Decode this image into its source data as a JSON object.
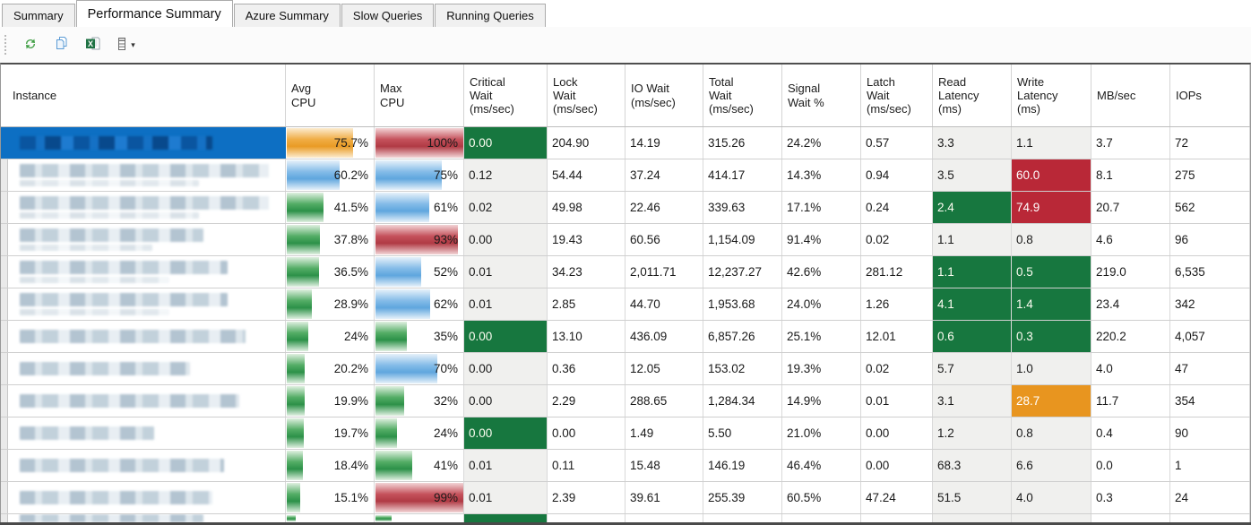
{
  "tabs": [
    {
      "label": "Summary",
      "active": false
    },
    {
      "label": "Performance Summary",
      "active": true
    },
    {
      "label": "Azure Summary",
      "active": false
    },
    {
      "label": "Slow Queries",
      "active": false
    },
    {
      "label": "Running Queries",
      "active": false
    }
  ],
  "toolbar": {
    "caret": "▾",
    "buttons": [
      {
        "name": "refresh"
      },
      {
        "name": "copy"
      },
      {
        "name": "export-excel"
      },
      {
        "name": "column-chooser"
      }
    ]
  },
  "colors": {
    "selection_blue": "#0d6fc3",
    "bar_green": "#2c9148",
    "bar_blue": "#5fa6de",
    "bar_red": "#b03a44",
    "bar_orange": "#e99b25",
    "cell_green": "#17773f",
    "cell_red": "#b92837",
    "cell_orange": "#e8951f",
    "tinted_column_bg": "#f0f0ee"
  },
  "table": {
    "columns": [
      {
        "key": "instance",
        "label": "Instance"
      },
      {
        "key": "avg",
        "label": "Avg\nCPU"
      },
      {
        "key": "max",
        "label": "Max\nCPU"
      },
      {
        "key": "critical",
        "label": "Critical\nWait\n(ms/sec)"
      },
      {
        "key": "lock",
        "label": "Lock\nWait\n(ms/sec)"
      },
      {
        "key": "io",
        "label": "IO Wait\n(ms/sec)"
      },
      {
        "key": "total",
        "label": "Total\nWait\n(ms/sec)"
      },
      {
        "key": "signal",
        "label": "Signal\nWait %"
      },
      {
        "key": "latch",
        "label": "Latch\nWait\n(ms/sec)"
      },
      {
        "key": "read",
        "label": "Read\nLatency\n(ms)"
      },
      {
        "key": "write",
        "label": "Write\nLatency\n(ms)"
      },
      {
        "key": "mb",
        "label": "MB/sec"
      },
      {
        "key": "iops",
        "label": "IOPs"
      }
    ],
    "rows": [
      {
        "selected": true,
        "blur_w": 215,
        "blur_sub": false,
        "avg": {
          "pct": 75.7,
          "label": "75.7%",
          "color": "orange"
        },
        "max": {
          "pct": 100,
          "label": "100%",
          "color": "red"
        },
        "cells": {
          "critical": {
            "t": "0.00",
            "bg": "green"
          },
          "lock": {
            "t": "204.90"
          },
          "io": {
            "t": "14.19"
          },
          "total": {
            "t": "315.26"
          },
          "signal": {
            "t": "24.2%"
          },
          "latch": {
            "t": "0.57"
          },
          "read": {
            "t": "3.3"
          },
          "write": {
            "t": "1.1"
          },
          "mb": {
            "t": "3.7"
          },
          "iops": {
            "t": "72"
          }
        }
      },
      {
        "blur_w": 278,
        "blur_sub": true,
        "avg": {
          "pct": 60.2,
          "label": "60.2%",
          "color": "blue"
        },
        "max": {
          "pct": 75,
          "label": "75%",
          "color": "blue"
        },
        "cells": {
          "critical": {
            "t": "0.12"
          },
          "lock": {
            "t": "54.44"
          },
          "io": {
            "t": "37.24"
          },
          "total": {
            "t": "414.17"
          },
          "signal": {
            "t": "14.3%"
          },
          "latch": {
            "t": "0.94"
          },
          "read": {
            "t": "3.5"
          },
          "write": {
            "t": "60.0",
            "bg": "red"
          },
          "mb": {
            "t": "8.1"
          },
          "iops": {
            "t": "275"
          }
        }
      },
      {
        "blur_w": 278,
        "blur_sub": true,
        "avg": {
          "pct": 41.5,
          "label": "41.5%",
          "color": "green"
        },
        "max": {
          "pct": 61,
          "label": "61%",
          "color": "blue"
        },
        "cells": {
          "critical": {
            "t": "0.02"
          },
          "lock": {
            "t": "49.98"
          },
          "io": {
            "t": "22.46"
          },
          "total": {
            "t": "339.63"
          },
          "signal": {
            "t": "17.1%"
          },
          "latch": {
            "t": "0.24"
          },
          "read": {
            "t": "2.4",
            "bg": "green"
          },
          "write": {
            "t": "74.9",
            "bg": "red"
          },
          "mb": {
            "t": "20.7"
          },
          "iops": {
            "t": "562"
          }
        }
      },
      {
        "blur_w": 205,
        "blur_sub": true,
        "avg": {
          "pct": 37.8,
          "label": "37.8%",
          "color": "green"
        },
        "max": {
          "pct": 93,
          "label": "93%",
          "color": "red"
        },
        "cells": {
          "critical": {
            "t": "0.00"
          },
          "lock": {
            "t": "19.43"
          },
          "io": {
            "t": "60.56"
          },
          "total": {
            "t": "1,154.09"
          },
          "signal": {
            "t": "91.4%"
          },
          "latch": {
            "t": "0.02"
          },
          "read": {
            "t": "1.1"
          },
          "write": {
            "t": "0.8"
          },
          "mb": {
            "t": "4.6"
          },
          "iops": {
            "t": "96"
          }
        }
      },
      {
        "blur_w": 232,
        "blur_sub": true,
        "avg": {
          "pct": 36.5,
          "label": "36.5%",
          "color": "green"
        },
        "max": {
          "pct": 52,
          "label": "52%",
          "color": "blue"
        },
        "cells": {
          "critical": {
            "t": "0.01"
          },
          "lock": {
            "t": "34.23"
          },
          "io": {
            "t": "2,011.71"
          },
          "total": {
            "t": "12,237.27"
          },
          "signal": {
            "t": "42.6%"
          },
          "latch": {
            "t": "281.12"
          },
          "read": {
            "t": "1.1",
            "bg": "green"
          },
          "write": {
            "t": "0.5",
            "bg": "green"
          },
          "mb": {
            "t": "219.0"
          },
          "iops": {
            "t": "6,535"
          }
        }
      },
      {
        "blur_w": 232,
        "blur_sub": true,
        "avg": {
          "pct": 28.9,
          "label": "28.9%",
          "color": "green"
        },
        "max": {
          "pct": 62,
          "label": "62%",
          "color": "blue"
        },
        "cells": {
          "critical": {
            "t": "0.01"
          },
          "lock": {
            "t": "2.85"
          },
          "io": {
            "t": "44.70"
          },
          "total": {
            "t": "1,953.68"
          },
          "signal": {
            "t": "24.0%"
          },
          "latch": {
            "t": "1.26"
          },
          "read": {
            "t": "4.1",
            "bg": "green"
          },
          "write": {
            "t": "1.4",
            "bg": "green"
          },
          "mb": {
            "t": "23.4"
          },
          "iops": {
            "t": "342"
          }
        }
      },
      {
        "blur_w": 252,
        "blur_sub": false,
        "avg": {
          "pct": 24,
          "label": "24%",
          "color": "green"
        },
        "max": {
          "pct": 35,
          "label": "35%",
          "color": "green"
        },
        "cells": {
          "critical": {
            "t": "0.00",
            "bg": "green"
          },
          "lock": {
            "t": "13.10"
          },
          "io": {
            "t": "436.09"
          },
          "total": {
            "t": "6,857.26"
          },
          "signal": {
            "t": "25.1%"
          },
          "latch": {
            "t": "12.01"
          },
          "read": {
            "t": "0.6",
            "bg": "green"
          },
          "write": {
            "t": "0.3",
            "bg": "green"
          },
          "mb": {
            "t": "220.2"
          },
          "iops": {
            "t": "4,057"
          }
        }
      },
      {
        "blur_w": 190,
        "blur_sub": false,
        "avg": {
          "pct": 20.2,
          "label": "20.2%",
          "color": "green"
        },
        "max": {
          "pct": 70,
          "label": "70%",
          "color": "blue"
        },
        "cells": {
          "critical": {
            "t": "0.00"
          },
          "lock": {
            "t": "0.36"
          },
          "io": {
            "t": "12.05"
          },
          "total": {
            "t": "153.02"
          },
          "signal": {
            "t": "19.3%"
          },
          "latch": {
            "t": "0.02"
          },
          "read": {
            "t": "5.7"
          },
          "write": {
            "t": "1.0"
          },
          "mb": {
            "t": "4.0"
          },
          "iops": {
            "t": "47"
          }
        }
      },
      {
        "blur_w": 245,
        "blur_sub": false,
        "avg": {
          "pct": 19.9,
          "label": "19.9%",
          "color": "green"
        },
        "max": {
          "pct": 32,
          "label": "32%",
          "color": "green"
        },
        "cells": {
          "critical": {
            "t": "0.00"
          },
          "lock": {
            "t": "2.29"
          },
          "io": {
            "t": "288.65"
          },
          "total": {
            "t": "1,284.34"
          },
          "signal": {
            "t": "14.9%"
          },
          "latch": {
            "t": "0.01"
          },
          "read": {
            "t": "3.1"
          },
          "write": {
            "t": "28.7",
            "bg": "orange"
          },
          "mb": {
            "t": "11.7"
          },
          "iops": {
            "t": "354"
          }
        }
      },
      {
        "blur_w": 150,
        "blur_sub": false,
        "avg": {
          "pct": 19.7,
          "label": "19.7%",
          "color": "green"
        },
        "max": {
          "pct": 24,
          "label": "24%",
          "color": "green"
        },
        "cells": {
          "critical": {
            "t": "0.00",
            "bg": "green"
          },
          "lock": {
            "t": "0.00"
          },
          "io": {
            "t": "1.49"
          },
          "total": {
            "t": "5.50"
          },
          "signal": {
            "t": "21.0%"
          },
          "latch": {
            "t": "0.00"
          },
          "read": {
            "t": "1.2"
          },
          "write": {
            "t": "0.8"
          },
          "mb": {
            "t": "0.4"
          },
          "iops": {
            "t": "90"
          }
        }
      },
      {
        "blur_w": 228,
        "blur_sub": false,
        "avg": {
          "pct": 18.4,
          "label": "18.4%",
          "color": "green"
        },
        "max": {
          "pct": 41,
          "label": "41%",
          "color": "green"
        },
        "cells": {
          "critical": {
            "t": "0.01"
          },
          "lock": {
            "t": "0.11"
          },
          "io": {
            "t": "15.48"
          },
          "total": {
            "t": "146.19"
          },
          "signal": {
            "t": "46.4%"
          },
          "latch": {
            "t": "0.00"
          },
          "read": {
            "t": "68.3"
          },
          "write": {
            "t": "6.6"
          },
          "mb": {
            "t": "0.0"
          },
          "iops": {
            "t": "1"
          }
        }
      },
      {
        "blur_w": 215,
        "blur_sub": false,
        "avg": {
          "pct": 15.1,
          "label": "15.1%",
          "color": "green"
        },
        "max": {
          "pct": 99,
          "label": "99%",
          "color": "red"
        },
        "cells": {
          "critical": {
            "t": "0.01"
          },
          "lock": {
            "t": "2.39"
          },
          "io": {
            "t": "39.61"
          },
          "total": {
            "t": "255.39"
          },
          "signal": {
            "t": "60.5%"
          },
          "latch": {
            "t": "47.24"
          },
          "read": {
            "t": "51.5"
          },
          "write": {
            "t": "4.0"
          },
          "mb": {
            "t": "0.3"
          },
          "iops": {
            "t": "24"
          }
        }
      },
      {
        "partial": true,
        "blur_w": 205,
        "blur_sub": false,
        "avg": {
          "pct": 10,
          "label": "",
          "color": "green"
        },
        "max": {
          "pct": 18,
          "label": "",
          "color": "green"
        },
        "cells": {
          "critical": {
            "t": "",
            "bg": "green"
          }
        }
      }
    ]
  }
}
